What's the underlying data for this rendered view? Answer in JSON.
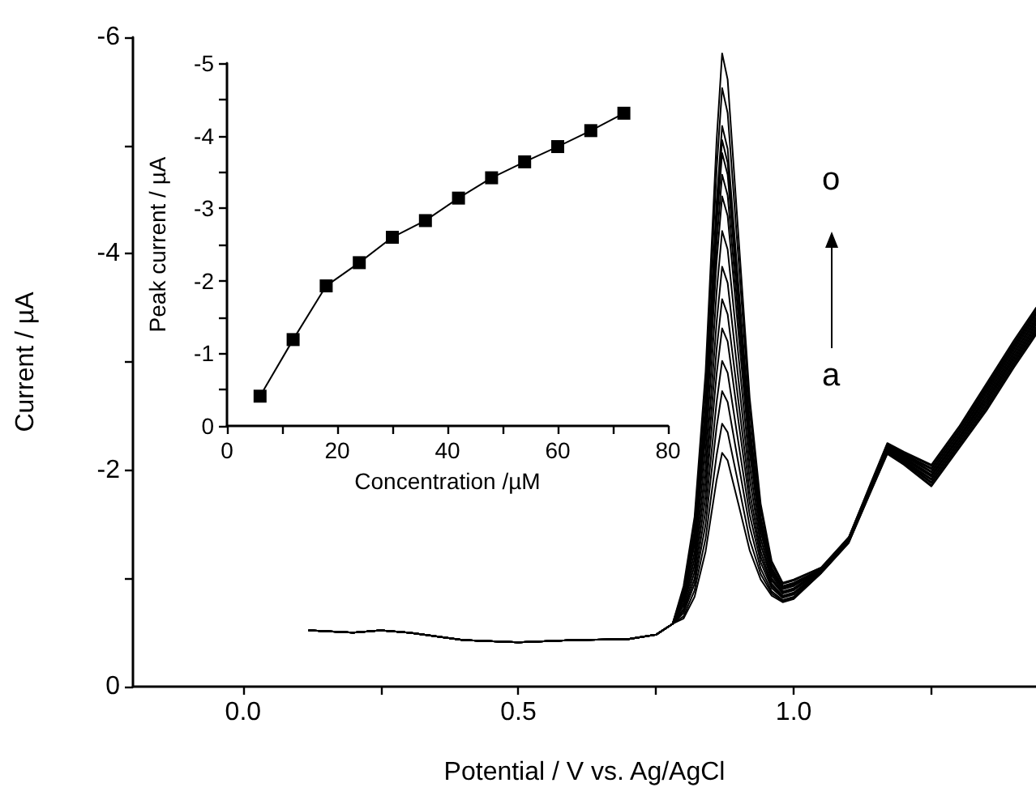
{
  "chart_data": [
    {
      "type": "line",
      "xlabel": "Potential / V vs. Ag/AgCl",
      "ylabel": "Current / µA",
      "marker": "none",
      "xlim": [
        -0.2,
        1.44
      ],
      "ylim": [
        0,
        -6
      ],
      "xticks": [
        {
          "value": 0,
          "label": "0.0"
        },
        {
          "value": 0.25,
          "label": null
        },
        {
          "value": 0.5,
          "label": "0.5"
        },
        {
          "value": 0.75,
          "label": null
        },
        {
          "value": 1,
          "label": "1.0"
        },
        {
          "value": 1.25,
          "label": null
        }
      ],
      "yticks": [
        0,
        {
          "value": -1,
          "label": null
        },
        -2,
        {
          "value": -3,
          "label": null
        },
        -4,
        {
          "value": -5,
          "label": null
        },
        -6
      ],
      "annotations": [
        "o",
        "a"
      ],
      "x": [
        0.12,
        0.2,
        0.25,
        0.3,
        0.4,
        0.5,
        0.6,
        0.7,
        0.75,
        0.78,
        0.8,
        0.82,
        0.84,
        0.86,
        0.87,
        0.88,
        0.9,
        0.92,
        0.94,
        0.96,
        0.98,
        1.0,
        1.05,
        1.1,
        1.14,
        1.17,
        1.2,
        1.25,
        1.3,
        1.35,
        1.4,
        1.44
      ],
      "series": [
        {
          "color": "#000000",
          "values": [
            -0.52,
            -0.5,
            -0.52,
            -0.5,
            -0.43,
            -0.41,
            -0.43,
            -0.44,
            -0.48,
            -0.58,
            -0.63,
            -0.83,
            -1.25,
            -1.91,
            -2.16,
            -2.09,
            -1.68,
            -1.26,
            -0.99,
            -0.84,
            -0.78,
            -0.81,
            -1.05,
            -1.33,
            -1.8,
            -2.15,
            -2.05,
            -1.85,
            -2.2,
            -2.55,
            -2.95,
            -3.25
          ]
        },
        {
          "color": "#000000",
          "values": [
            -0.52,
            -0.5,
            -0.52,
            -0.5,
            -0.43,
            -0.41,
            -0.43,
            -0.44,
            -0.48,
            -0.58,
            -0.65,
            -0.89,
            -1.37,
            -2.14,
            -2.43,
            -2.35,
            -1.86,
            -1.36,
            -1.04,
            -0.86,
            -0.79,
            -0.82,
            -1.05,
            -1.33,
            -1.81,
            -2.16,
            -2.06,
            -1.86,
            -2.21,
            -2.57,
            -2.97,
            -3.27
          ]
        },
        {
          "color": "#000000",
          "values": [
            -0.52,
            -0.5,
            -0.52,
            -0.5,
            -0.43,
            -0.41,
            -0.43,
            -0.44,
            -0.48,
            -0.58,
            -0.68,
            -0.95,
            -1.5,
            -2.4,
            -2.73,
            -2.63,
            -2.05,
            -1.48,
            -1.09,
            -0.88,
            -0.8,
            -0.83,
            -1.06,
            -1.34,
            -1.81,
            -2.16,
            -2.07,
            -1.88,
            -2.23,
            -2.59,
            -2.99,
            -3.29
          ]
        },
        {
          "color": "#000000",
          "values": [
            -0.52,
            -0.5,
            -0.52,
            -0.5,
            -0.43,
            -0.41,
            -0.43,
            -0.44,
            -0.48,
            -0.58,
            -0.7,
            -1.0,
            -1.63,
            -2.63,
            -3.01,
            -2.9,
            -2.24,
            -1.59,
            -1.15,
            -0.91,
            -0.82,
            -0.85,
            -1.06,
            -1.34,
            -1.82,
            -2.17,
            -2.08,
            -1.89,
            -2.24,
            -2.6,
            -3.0,
            -3.3
          ]
        },
        {
          "color": "#000000",
          "values": [
            -0.52,
            -0.5,
            -0.52,
            -0.5,
            -0.43,
            -0.41,
            -0.43,
            -0.44,
            -0.48,
            -0.58,
            -0.72,
            -1.06,
            -1.76,
            -2.89,
            -3.31,
            -3.19,
            -2.44,
            -1.7,
            -1.2,
            -0.93,
            -0.83,
            -0.86,
            -1.06,
            -1.34,
            -1.82,
            -2.18,
            -2.08,
            -1.91,
            -2.26,
            -2.62,
            -3.02,
            -3.32
          ]
        },
        {
          "color": "#000000",
          "values": [
            -0.52,
            -0.5,
            -0.52,
            -0.5,
            -0.43,
            -0.41,
            -0.43,
            -0.44,
            -0.48,
            -0.58,
            -0.75,
            -1.12,
            -1.89,
            -3.12,
            -3.58,
            -3.44,
            -2.62,
            -1.8,
            -1.25,
            -0.95,
            -0.84,
            -0.87,
            -1.07,
            -1.35,
            -1.83,
            -2.19,
            -2.09,
            -1.92,
            -2.27,
            -2.64,
            -3.04,
            -3.34
          ]
        },
        {
          "color": "#000000",
          "values": [
            -0.52,
            -0.5,
            -0.52,
            -0.5,
            -0.43,
            -0.41,
            -0.43,
            -0.44,
            -0.48,
            -0.58,
            -0.77,
            -1.18,
            -2.02,
            -3.37,
            -3.88,
            -3.73,
            -2.82,
            -1.92,
            -1.31,
            -0.98,
            -0.86,
            -0.89,
            -1.07,
            -1.35,
            -1.83,
            -2.19,
            -2.1,
            -1.94,
            -2.29,
            -2.66,
            -3.06,
            -3.36
          ]
        },
        {
          "color": "#000000",
          "values": [
            -0.52,
            -0.5,
            -0.52,
            -0.5,
            -0.43,
            -0.41,
            -0.43,
            -0.44,
            -0.48,
            -0.58,
            -0.8,
            -1.24,
            -2.17,
            -3.65,
            -4.21,
            -4.04,
            -3.04,
            -2.04,
            -1.37,
            -1.0,
            -0.87,
            -0.9,
            -1.08,
            -1.36,
            -1.84,
            -2.2,
            -2.11,
            -1.95,
            -2.3,
            -2.68,
            -3.08,
            -3.38
          ]
        },
        {
          "color": "#000000",
          "values": [
            -0.52,
            -0.5,
            -0.52,
            -0.5,
            -0.43,
            -0.41,
            -0.43,
            -0.44,
            -0.48,
            -0.58,
            -0.82,
            -1.31,
            -2.31,
            -3.93,
            -4.53,
            -4.35,
            -3.25,
            -2.16,
            -1.43,
            -1.03,
            -0.88,
            -0.91,
            -1.08,
            -1.36,
            -1.85,
            -2.21,
            -2.12,
            -1.96,
            -2.31,
            -2.69,
            -3.09,
            -3.39
          ]
        },
        {
          "color": "#000000",
          "values": [
            -0.52,
            -0.5,
            -0.52,
            -0.5,
            -0.43,
            -0.41,
            -0.43,
            -0.44,
            -0.48,
            -0.58,
            -0.84,
            -1.35,
            -2.4,
            -4.1,
            -4.73,
            -4.54,
            -3.39,
            -2.24,
            -1.48,
            -1.05,
            -0.9,
            -0.93,
            -1.08,
            -1.36,
            -1.85,
            -2.21,
            -2.13,
            -1.98,
            -2.33,
            -2.71,
            -3.11,
            -3.41
          ]
        },
        {
          "color": "#000000",
          "values": [
            -0.52,
            -0.5,
            -0.52,
            -0.5,
            -0.43,
            -0.41,
            -0.43,
            -0.44,
            -0.48,
            -0.58,
            -0.85,
            -1.39,
            -2.49,
            -4.27,
            -4.93,
            -4.73,
            -3.52,
            -2.32,
            -1.51,
            -1.07,
            -0.91,
            -0.94,
            -1.09,
            -1.37,
            -1.86,
            -2.22,
            -2.14,
            -1.99,
            -2.34,
            -2.73,
            -3.13,
            -3.43
          ]
        },
        {
          "color": "#000000",
          "values": [
            -0.52,
            -0.5,
            -0.52,
            -0.5,
            -0.43,
            -0.41,
            -0.43,
            -0.44,
            -0.48,
            -0.58,
            -0.86,
            -1.41,
            -2.55,
            -4.37,
            -5.05,
            -4.84,
            -3.61,
            -2.37,
            -1.54,
            -1.09,
            -0.92,
            -0.95,
            -1.09,
            -1.37,
            -1.86,
            -2.23,
            -2.14,
            -2.01,
            -2.36,
            -2.75,
            -3.15,
            -3.45
          ]
        },
        {
          "color": "#000000",
          "values": [
            -0.52,
            -0.5,
            -0.52,
            -0.5,
            -0.43,
            -0.41,
            -0.43,
            -0.44,
            -0.48,
            -0.58,
            -0.87,
            -1.44,
            -2.61,
            -4.48,
            -5.18,
            -4.97,
            -3.69,
            -2.42,
            -1.57,
            -1.1,
            -0.93,
            -0.96,
            -1.09,
            -1.37,
            -1.87,
            -2.24,
            -2.15,
            -2.02,
            -2.37,
            -2.76,
            -3.16,
            -3.46
          ]
        },
        {
          "color": "#000000",
          "values": [
            -0.52,
            -0.5,
            -0.52,
            -0.5,
            -0.43,
            -0.41,
            -0.43,
            -0.44,
            -0.48,
            -0.58,
            -0.9,
            -1.51,
            -2.76,
            -4.78,
            -5.53,
            -5.3,
            -3.93,
            -2.55,
            -1.64,
            -1.13,
            -0.95,
            -0.98,
            -1.1,
            -1.38,
            -1.87,
            -2.24,
            -2.16,
            -2.04,
            -2.39,
            -2.78,
            -3.18,
            -3.48
          ]
        },
        {
          "color": "#000000",
          "values": [
            -0.52,
            -0.5,
            -0.52,
            -0.5,
            -0.43,
            -0.41,
            -0.43,
            -0.44,
            -0.48,
            -0.58,
            -0.93,
            -1.57,
            -2.91,
            -5.05,
            -5.85,
            -5.61,
            -4.14,
            -2.67,
            -1.69,
            -1.16,
            -0.96,
            -0.99,
            -1.1,
            -1.38,
            -1.88,
            -2.25,
            -2.17,
            -2.05,
            -2.4,
            -2.8,
            -3.2,
            -3.5
          ]
        }
      ]
    },
    {
      "type": "line",
      "xlabel": "Concentration /µM",
      "ylabel": "Peak current / µA",
      "marker": "square",
      "color": "#000000",
      "xlim": [
        0,
        80
      ],
      "ylim": [
        0,
        -5
      ],
      "xticks": [
        0,
        {
          "value": 10,
          "label": null
        },
        20,
        {
          "value": 30,
          "label": null
        },
        40,
        {
          "value": 50,
          "label": null
        },
        60,
        {
          "value": 70,
          "label": null
        },
        80
      ],
      "yticks": [
        0,
        {
          "value": -0.5,
          "label": null
        },
        -1,
        {
          "value": -1.5,
          "label": null
        },
        -2,
        {
          "value": -2.5,
          "label": null
        },
        -3,
        {
          "value": -3.5,
          "label": null
        },
        -4,
        {
          "value": -4.5,
          "label": null
        },
        -5
      ],
      "x": [
        6,
        12,
        18,
        24,
        30,
        36,
        42,
        48,
        54,
        60,
        66,
        72
      ],
      "values": [
        -0.41,
        -1.19,
        -1.93,
        -2.25,
        -2.6,
        -2.83,
        -3.14,
        -3.42,
        -3.64,
        -3.85,
        -4.07,
        -4.31
      ]
    }
  ]
}
